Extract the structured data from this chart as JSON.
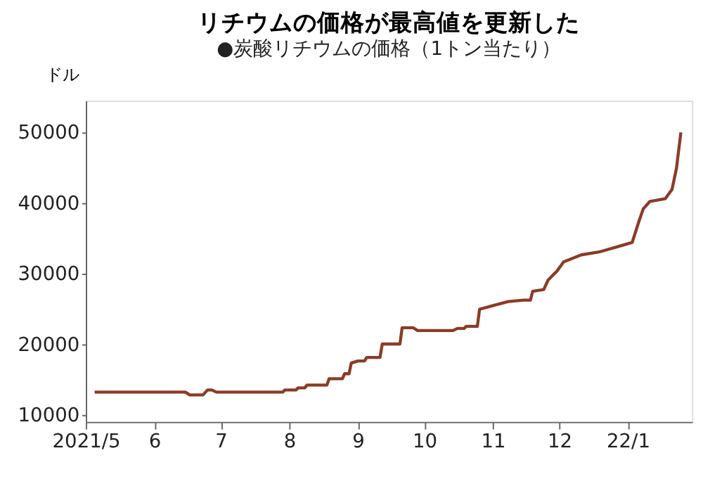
{
  "chart_data": {
    "type": "line",
    "title": "リチウムの価格が最高値を更新した",
    "subtitle": "●炭酸リチウムの価格（1トン当たり）",
    "ylabel": "ドル",
    "xlim": [
      "2021-05-01",
      "2022-01-30"
    ],
    "xticks": [
      {
        "value": "2021-05-01",
        "label": "2021/5"
      },
      {
        "value": "2021-06-01",
        "label": "6"
      },
      {
        "value": "2021-07-01",
        "label": "7"
      },
      {
        "value": "2021-08-01",
        "label": "8"
      },
      {
        "value": "2021-09-01",
        "label": "9"
      },
      {
        "value": "2021-10-01",
        "label": "10"
      },
      {
        "value": "2021-11-01",
        "label": "11"
      },
      {
        "value": "2021-12-01",
        "label": "12"
      },
      {
        "value": "2022-01-01",
        "label": "22/1"
      }
    ],
    "ylim": [
      9100,
      54500
    ],
    "yticks": [
      10000,
      20000,
      30000,
      40000,
      50000
    ],
    "grid": false,
    "marker": "none",
    "line_style": "solid",
    "x": [
      "2021-05-05",
      "2021-06-15",
      "2021-06-17",
      "2021-06-23",
      "2021-06-25",
      "2021-06-27",
      "2021-06-29",
      "2021-07-29",
      "2021-07-30",
      "2021-08-04",
      "2021-08-05",
      "2021-08-08",
      "2021-08-09",
      "2021-08-18",
      "2021-08-19",
      "2021-08-25",
      "2021-08-26",
      "2021-08-28",
      "2021-08-29",
      "2021-09-01",
      "2021-09-04",
      "2021-09-05",
      "2021-09-11",
      "2021-09-12",
      "2021-09-20",
      "2021-09-21",
      "2021-09-26",
      "2021-09-28",
      "2021-10-14",
      "2021-10-16",
      "2021-10-19",
      "2021-10-20",
      "2021-10-25",
      "2021-10-26",
      "2021-11-02",
      "2021-11-08",
      "2021-11-15",
      "2021-11-18",
      "2021-11-19",
      "2021-11-24",
      "2021-11-26",
      "2021-11-30",
      "2021-12-03",
      "2021-12-11",
      "2021-12-19",
      "2021-12-28",
      "2022-01-03",
      "2022-01-06",
      "2022-01-08",
      "2022-01-11",
      "2022-01-18",
      "2022-01-21",
      "2022-01-23",
      "2022-01-25"
    ],
    "series": [
      {
        "color": "#8c3b26",
        "values": [
          13300,
          13300,
          12900,
          12900,
          13600,
          13600,
          13300,
          13300,
          13600,
          13600,
          13900,
          13900,
          14300,
          14300,
          15200,
          15200,
          15900,
          15900,
          17400,
          17700,
          17700,
          18200,
          18200,
          20100,
          20100,
          22400,
          22400,
          22000,
          22000,
          22300,
          22300,
          22600,
          22600,
          25000,
          25600,
          26100,
          26300,
          26300,
          27550,
          27800,
          29150,
          30400,
          31700,
          32700,
          33100,
          33900,
          34450,
          37400,
          39200,
          40250,
          40650,
          41950,
          44900,
          50000
        ]
      }
    ]
  }
}
